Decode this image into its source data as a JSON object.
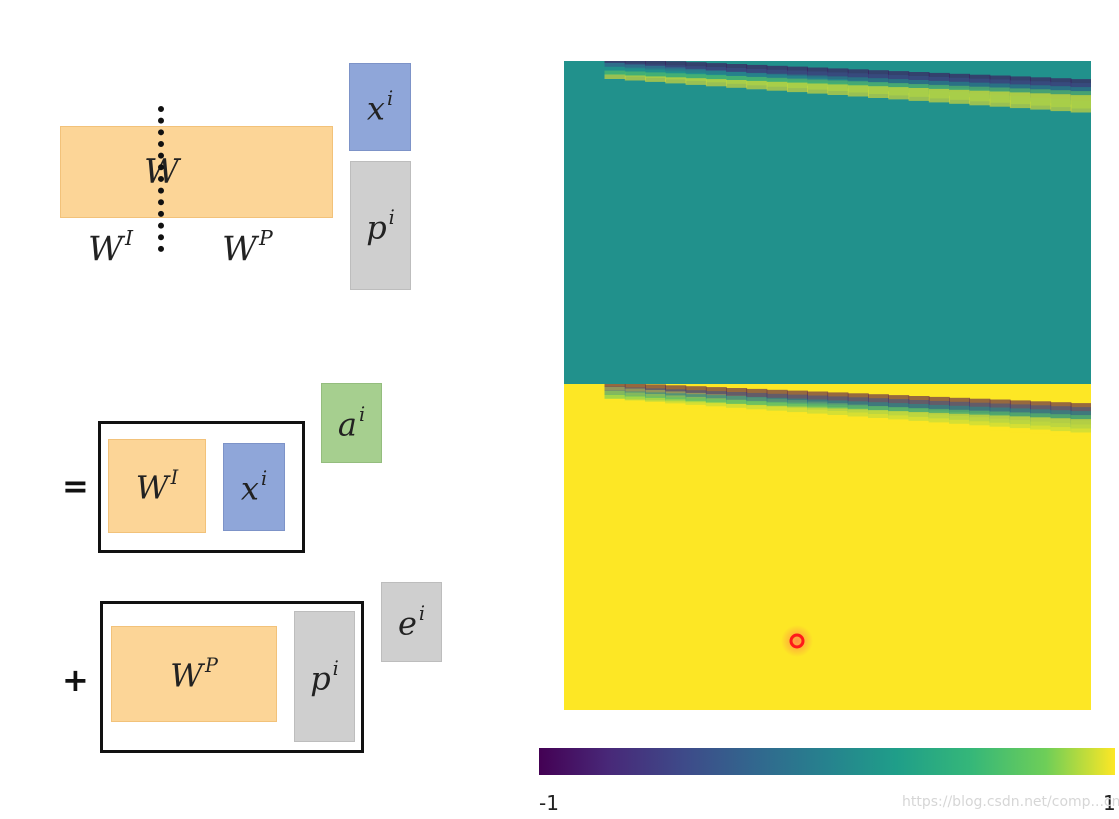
{
  "diagram": {
    "symbols": {
      "W": "W",
      "x": "x",
      "p": "p",
      "a": "a",
      "e": "e",
      "sup_i": "i",
      "sup_I": "I",
      "sup_P": "P"
    },
    "operators": {
      "equals": "=",
      "plus": "+"
    },
    "colors": {
      "orange": "#fcd597",
      "blue": "#8fa6d9",
      "gray": "#cfcfcf",
      "green": "#a6cf8f"
    }
  },
  "heatmap": {
    "colormap": "viridis",
    "colorbar": {
      "min_label": "-1",
      "max_label": "1"
    },
    "highlight_marker": "red circle"
  },
  "watermark": "https://blog.csdn.net/comp...cn"
}
